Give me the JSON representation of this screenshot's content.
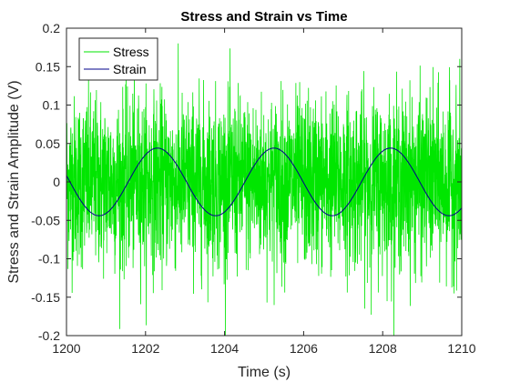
{
  "chart_data": {
    "type": "line",
    "title": "Stress and Strain vs Time",
    "xlabel": "Time (s)",
    "ylabel": "Stress and Strain Amplitude (V)",
    "xlim": [
      1200,
      1210
    ],
    "ylim": [
      -0.2,
      0.2
    ],
    "xticks": [
      1200,
      1202,
      1204,
      1206,
      1208,
      1210
    ],
    "yticks": [
      -0.2,
      -0.15,
      -0.1,
      -0.05,
      0,
      0.05,
      0.1,
      0.15,
      0.2
    ],
    "ytick_labels": [
      "-0.2",
      "-0.15",
      "-0.1",
      "-0.05",
      "0",
      "0.05",
      "0.1",
      "0.15",
      "0.2"
    ],
    "xtick_labels": [
      "1200",
      "1202",
      "1204",
      "1206",
      "1208",
      "1210"
    ],
    "grid": false,
    "legend_position": "top-left",
    "series": [
      {
        "name": "Stress",
        "color": "#00e600",
        "description_values": {
          "x_range": [
            1200,
            1210
          ],
          "mean": 0,
          "typical_spread": [
            -0.1,
            0.1
          ],
          "observed_extremes": [
            -0.2,
            0.2
          ]
        }
      },
      {
        "name": "Strain",
        "color": "#00008b",
        "amplitude": 0.044,
        "period": 2.95,
        "first_peak_x": 1202.3,
        "x": [
          1200,
          1200.8,
          1202.3,
          1203.8,
          1205.3,
          1206.7,
          1208.2,
          1209.7,
          1210
        ],
        "y": [
          0.0,
          -0.044,
          0.044,
          -0.044,
          0.044,
          -0.044,
          0.044,
          -0.044,
          -0.04
        ]
      }
    ]
  }
}
